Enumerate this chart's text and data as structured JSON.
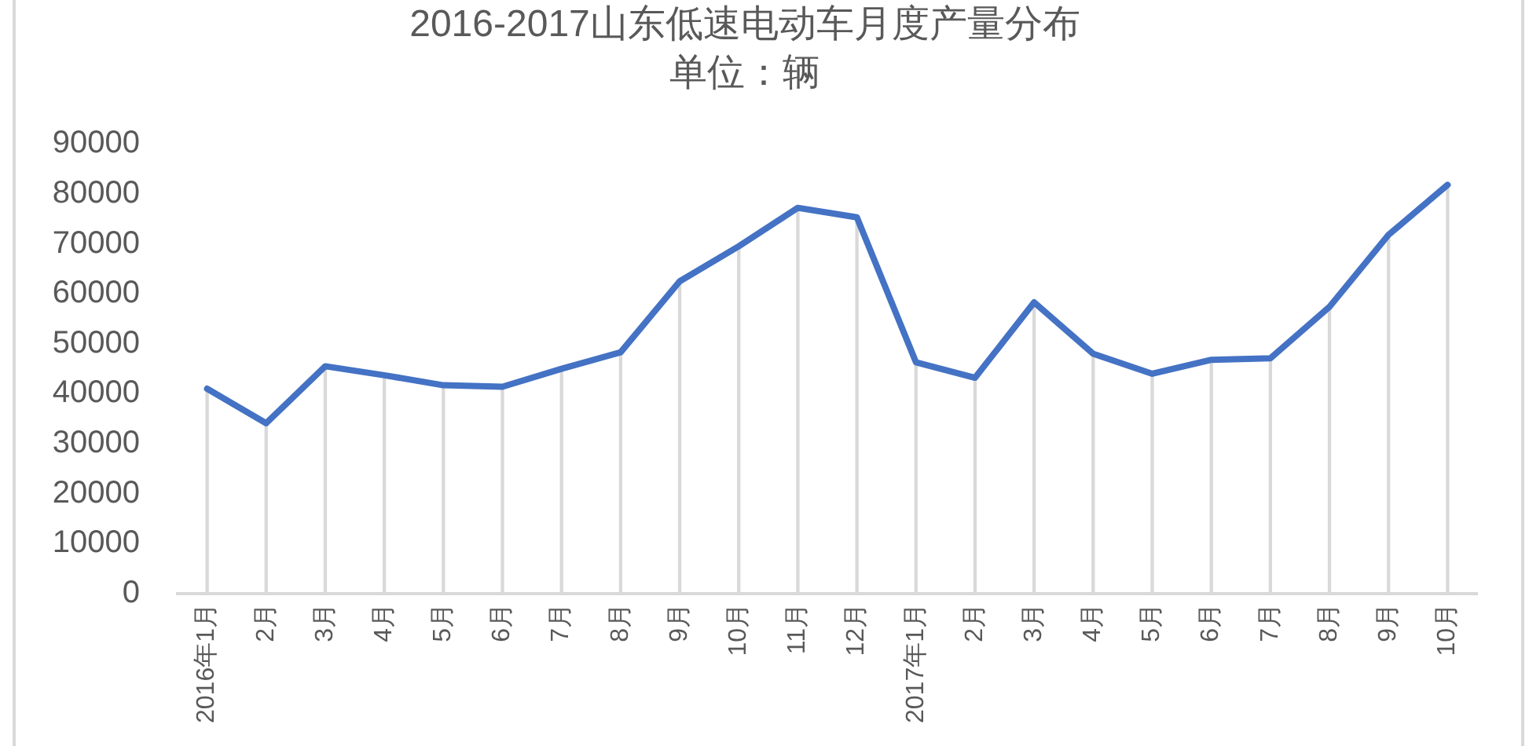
{
  "chart_data": {
    "type": "line",
    "title": "2016-2017山东低速电动车月度产量分布",
    "subtitle": "单位：辆",
    "categories": [
      "2016年1月",
      "2月",
      "3月",
      "4月",
      "5月",
      "6月",
      "7月",
      "8月",
      "9月",
      "10月",
      "11月",
      "12月",
      "2017年1月",
      "2月",
      "3月",
      "4月",
      "5月",
      "6月",
      "7月",
      "8月",
      "9月",
      "10月"
    ],
    "series": [
      {
        "type": "bar",
        "color": "#d9d9d9",
        "values": [
          41000,
          34100,
          45500,
          43700,
          41700,
          41400,
          45000,
          48300,
          62500,
          69500,
          77200,
          75300,
          46300,
          43200,
          58300,
          48000,
          44000,
          46800,
          47100,
          57400,
          71800,
          81800
        ]
      },
      {
        "color": "#4472c4",
        "values": [
          41000,
          34100,
          45500,
          43700,
          41700,
          41400,
          45000,
          48300,
          62500,
          69500,
          77200,
          75300,
          46300,
          43200,
          58300,
          48000,
          44000,
          46800,
          47100,
          57400,
          71800,
          81800
        ]
      }
    ],
    "ylim": [
      0,
      90000
    ],
    "yticks": [
      0,
      10000,
      20000,
      30000,
      40000,
      50000,
      60000,
      70000,
      80000,
      90000
    ],
    "line_style": "solid"
  }
}
